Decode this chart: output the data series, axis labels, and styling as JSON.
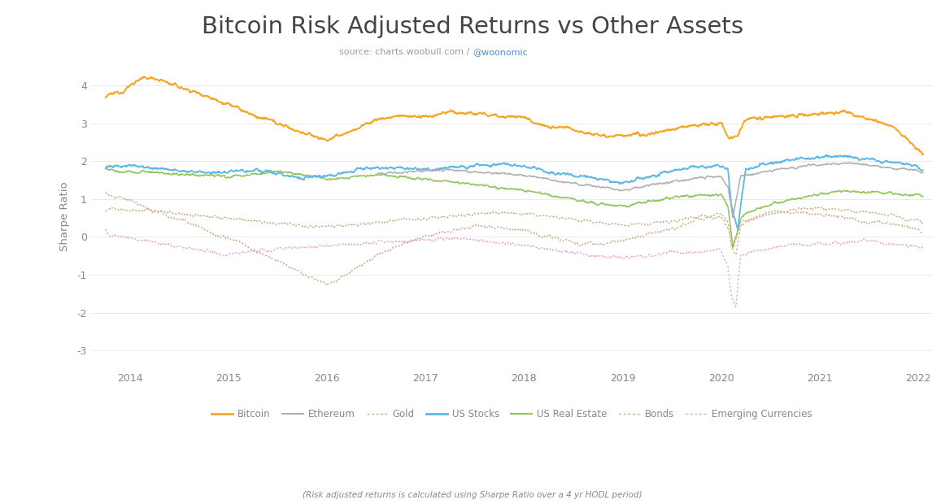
{
  "title": "Bitcoin Risk Adjusted Returns vs Other Assets",
  "subtitle_plain": "source: charts.woobull.com / ",
  "subtitle_link": "@woonomic",
  "subtitle_color_normal": "#999999",
  "subtitle_color_link": "#4a90d9",
  "ylabel": "Sharpe Ratio",
  "footnote": "(Risk adjusted returns is calculated using Sharpe Ratio over a 4 yr HODL period)",
  "background_color": "#ffffff",
  "text_color": "#888888",
  "grid_color": "#e8e8e8",
  "ylim": [
    -3.5,
    4.6
  ],
  "yticks": [
    -3,
    -2,
    -1,
    0,
    1,
    2,
    3,
    4
  ],
  "x_start_year": 2013.6,
  "x_end_year": 2022.15,
  "series": {
    "Bitcoin": {
      "color": "#f5a623",
      "lw": 1.4,
      "linestyle": "solid",
      "zorder": 6
    },
    "Ethereum": {
      "color": "#b0b0b0",
      "lw": 1.1,
      "linestyle": "solid",
      "zorder": 5
    },
    "Gold": {
      "color": "#c8a882",
      "lw": 0.9,
      "linestyle": "dotted",
      "zorder": 3
    },
    "US Stocks": {
      "color": "#5bb8e8",
      "lw": 1.3,
      "linestyle": "solid",
      "zorder": 4
    },
    "US Real Estate": {
      "color": "#90c45a",
      "lw": 1.1,
      "linestyle": "solid",
      "zorder": 3
    },
    "Bonds": {
      "color": "#c8a882",
      "lw": 0.9,
      "linestyle": "dotted",
      "zorder": 2
    },
    "Emerging Currencies": {
      "color": "#e8a0c8",
      "lw": 0.9,
      "linestyle": "dotted",
      "zorder": 2
    }
  }
}
